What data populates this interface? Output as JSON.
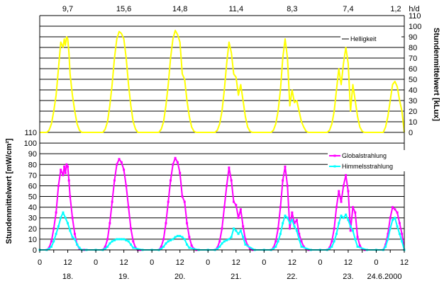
{
  "chart_data": {
    "type": "line",
    "x_range_hours": [
      0,
      156
    ],
    "day_labels": [
      "18.",
      "19.",
      "20.",
      "21.",
      "22.",
      "23.",
      "24.6.2000"
    ],
    "hour_tick_labels": [
      "0",
      "12",
      "0",
      "12",
      "0",
      "12",
      "0",
      "12",
      "0",
      "12",
      "0",
      "12",
      "0",
      "12"
    ],
    "daylight_unit": "h/d",
    "daylight_hours": [
      "9,7",
      "15,6",
      "14,8",
      "11,4",
      "8,3",
      "7,4",
      "1,2"
    ],
    "top_panel": {
      "ylabel": "Stundenmittelwert [kLux]",
      "ylim": [
        0,
        110
      ],
      "yticks": [
        "0",
        "10",
        "20",
        "30",
        "40",
        "50",
        "60",
        "70",
        "80",
        "90",
        "100",
        "110"
      ],
      "legend": "Helligkeit",
      "series": [
        {
          "name": "Helligkeit",
          "color": "#ffff00",
          "x": [
            0,
            3,
            4,
            5,
            6,
            7,
            8,
            9,
            10,
            10.5,
            11,
            11.5,
            12,
            12.5,
            13,
            14,
            15,
            16,
            17,
            18,
            19,
            20,
            24,
            27,
            28,
            29,
            30,
            31,
            32,
            33,
            34,
            35,
            36,
            37,
            38,
            39,
            40,
            41,
            42,
            43,
            44,
            48,
            51,
            52,
            53,
            54,
            55,
            56,
            57,
            58,
            59,
            60,
            61,
            62,
            63,
            64,
            65,
            66,
            67,
            68,
            72,
            75,
            76,
            77,
            78,
            79,
            80,
            81,
            82,
            83,
            84,
            85,
            86,
            87,
            88,
            89,
            90,
            91,
            92,
            96,
            99,
            100,
            101,
            102,
            103,
            104,
            105,
            106,
            107,
            108,
            109,
            110,
            111,
            112,
            113,
            114,
            115,
            116,
            120,
            123,
            124,
            125,
            126,
            127,
            128,
            129,
            130,
            131,
            132,
            133,
            134,
            135,
            136,
            137,
            138,
            139,
            140,
            144,
            147,
            148,
            149,
            150,
            151,
            152,
            153,
            154,
            155,
            156
          ],
          "y": [
            0,
            0,
            2,
            8,
            20,
            35,
            60,
            85,
            80,
            88,
            82,
            90,
            88,
            75,
            55,
            35,
            20,
            8,
            2,
            0,
            0,
            0,
            0,
            0,
            3,
            10,
            25,
            45,
            70,
            88,
            95,
            93,
            88,
            70,
            45,
            25,
            10,
            3,
            0,
            0,
            0,
            0,
            0,
            3,
            10,
            25,
            45,
            70,
            88,
            96,
            92,
            85,
            55,
            50,
            30,
            15,
            5,
            1,
            0,
            0,
            0,
            0,
            2,
            8,
            20,
            40,
            65,
            85,
            75,
            55,
            52,
            35,
            45,
            30,
            15,
            5,
            1,
            0,
            0,
            0,
            0,
            2,
            8,
            20,
            40,
            70,
            88,
            70,
            25,
            40,
            28,
            30,
            20,
            10,
            5,
            1,
            0,
            0,
            0,
            0,
            2,
            8,
            20,
            40,
            60,
            45,
            65,
            80,
            65,
            20,
            45,
            30,
            15,
            5,
            1,
            0,
            0,
            0,
            0,
            5,
            15,
            30,
            45,
            48,
            43,
            30,
            20,
            0
          ]
        }
      ]
    },
    "bottom_panel": {
      "ylabel": "Stundenmittelwert [mW/cm²]",
      "ylim": [
        0,
        110
      ],
      "yticks": [
        "0",
        "10",
        "20",
        "30",
        "40",
        "50",
        "60",
        "70",
        "80",
        "90",
        "100",
        "110"
      ],
      "series": [
        {
          "name": "Globalstrahlung",
          "color": "#ff00ff",
          "x": [
            0,
            3,
            4,
            5,
            6,
            7,
            8,
            9,
            10,
            10.5,
            11,
            11.5,
            12,
            12.5,
            13,
            14,
            15,
            16,
            17,
            18,
            19,
            20,
            24,
            27,
            28,
            29,
            30,
            31,
            32,
            33,
            34,
            35,
            36,
            37,
            38,
            39,
            40,
            41,
            42,
            43,
            44,
            48,
            51,
            52,
            53,
            54,
            55,
            56,
            57,
            58,
            59,
            60,
            61,
            62,
            63,
            64,
            65,
            66,
            67,
            68,
            72,
            75,
            76,
            77,
            78,
            79,
            80,
            81,
            82,
            83,
            84,
            85,
            86,
            87,
            88,
            89,
            90,
            91,
            92,
            96,
            99,
            100,
            101,
            102,
            103,
            104,
            105,
            106,
            107,
            108,
            109,
            110,
            111,
            112,
            113,
            114,
            115,
            116,
            120,
            123,
            124,
            125,
            126,
            127,
            128,
            129,
            130,
            131,
            132,
            133,
            134,
            135,
            136,
            137,
            138,
            139,
            140,
            144,
            147,
            148,
            149,
            150,
            151,
            152,
            153,
            154,
            155,
            156
          ],
          "y": [
            0,
            0,
            2,
            8,
            20,
            35,
            60,
            75,
            70,
            78,
            72,
            80,
            78,
            65,
            50,
            30,
            15,
            5,
            1,
            0,
            0,
            0,
            0,
            0,
            3,
            10,
            25,
            45,
            65,
            80,
            85,
            82,
            75,
            60,
            40,
            20,
            8,
            2,
            0,
            0,
            0,
            0,
            0,
            3,
            10,
            25,
            45,
            65,
            80,
            86,
            82,
            72,
            50,
            45,
            25,
            12,
            4,
            1,
            0,
            0,
            0,
            0,
            2,
            8,
            20,
            40,
            60,
            77,
            65,
            45,
            42,
            30,
            38,
            22,
            10,
            4,
            1,
            0,
            0,
            0,
            0,
            2,
            8,
            20,
            40,
            65,
            78,
            60,
            20,
            35,
            25,
            28,
            15,
            8,
            3,
            1,
            0,
            0,
            0,
            0,
            2,
            8,
            20,
            40,
            55,
            45,
            60,
            70,
            55,
            18,
            40,
            35,
            12,
            4,
            1,
            0,
            0,
            0,
            0,
            5,
            15,
            30,
            40,
            38,
            35,
            25,
            15,
            0
          ]
        },
        {
          "name": "Himmelsstrahlung",
          "color": "#00ffff",
          "x": [
            0,
            3,
            4,
            5,
            6,
            7,
            8,
            9,
            10,
            11,
            12,
            13,
            14,
            15,
            16,
            17,
            18,
            20,
            24,
            27,
            28,
            29,
            30,
            31,
            32,
            33,
            34,
            35,
            36,
            37,
            38,
            39,
            40,
            44,
            48,
            51,
            52,
            53,
            54,
            55,
            56,
            57,
            58,
            59,
            60,
            61,
            62,
            63,
            64,
            68,
            72,
            75,
            76,
            77,
            78,
            79,
            80,
            81,
            82,
            83,
            84,
            85,
            86,
            87,
            88,
            92,
            96,
            99,
            100,
            101,
            102,
            103,
            104,
            105,
            106,
            107,
            108,
            109,
            110,
            111,
            112,
            116,
            120,
            123,
            124,
            125,
            126,
            127,
            128,
            129,
            130,
            131,
            132,
            133,
            134,
            135,
            136,
            140,
            144,
            147,
            148,
            149,
            150,
            151,
            152,
            153,
            154,
            155,
            156
          ],
          "y": [
            0,
            0,
            1,
            3,
            8,
            15,
            22,
            30,
            35,
            30,
            25,
            18,
            12,
            10,
            5,
            2,
            0,
            0,
            0,
            0,
            1,
            3,
            6,
            8,
            9,
            10,
            10,
            10,
            10,
            9,
            8,
            5,
            2,
            0,
            0,
            0,
            1,
            3,
            6,
            8,
            9,
            10,
            12,
            13,
            13,
            12,
            10,
            5,
            2,
            0,
            0,
            0,
            1,
            3,
            6,
            8,
            9,
            10,
            12,
            20,
            18,
            15,
            18,
            12,
            5,
            0,
            0,
            0,
            1,
            3,
            8,
            15,
            25,
            32,
            30,
            25,
            28,
            22,
            18,
            10,
            3,
            0,
            0,
            0,
            1,
            3,
            8,
            15,
            25,
            32,
            30,
            33,
            28,
            22,
            18,
            10,
            3,
            0,
            0,
            0,
            3,
            10,
            20,
            28,
            30,
            22,
            15,
            8,
            0
          ]
        }
      ]
    }
  }
}
